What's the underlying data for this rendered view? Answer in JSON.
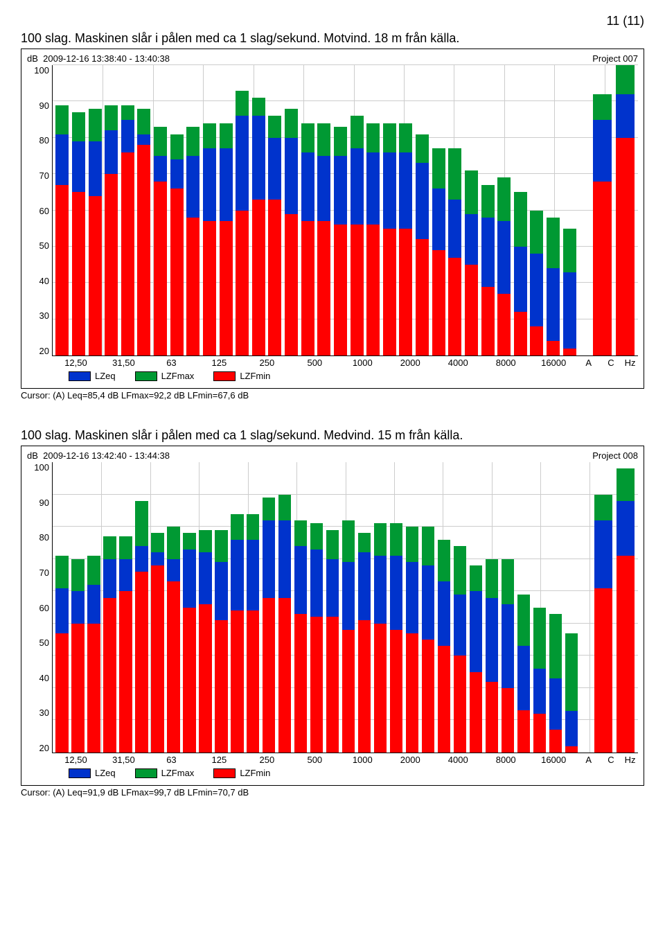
{
  "page_number": "11 (11)",
  "colors": {
    "green": "#009933",
    "blue": "#0033cc",
    "red": "#ff0000",
    "grid": "#cccccc",
    "border": "#000000"
  },
  "charts": [
    {
      "title": "100 slag. Maskinen slår i pålen med ca 1 slag/sekund. Motvind. 18 m från källa.",
      "project": "Project 007",
      "timestamp_label": "dB",
      "timestamp": "2009-12-16 13:38:40 - 13:40:38",
      "ymin": 20,
      "ymax": 100,
      "yticks": [
        20,
        30,
        40,
        50,
        60,
        70,
        80,
        90,
        100
      ],
      "x_labels_major": [
        "12,50",
        "31,50",
        "63",
        "125",
        "250",
        "500",
        "1000",
        "2000",
        "4000",
        "8000",
        "16000",
        "A",
        "C",
        "Hz"
      ],
      "legend": [
        {
          "label": "LZeq",
          "color": "#0033cc"
        },
        {
          "label": "LZFmax",
          "color": "#009933"
        },
        {
          "label": "LZFmin",
          "color": "#ff0000"
        }
      ],
      "cursor": "Cursor: (A)  Leq=85,4 dB  LFmax=92,2 dB  LFmin=67,6 dB",
      "bars": [
        {
          "max": 89,
          "eq": 81,
          "min": 67
        },
        {
          "max": 87,
          "eq": 79,
          "min": 65
        },
        {
          "max": 88,
          "eq": 79,
          "min": 64
        },
        {
          "max": 89,
          "eq": 82,
          "min": 70
        },
        {
          "max": 89,
          "eq": 85,
          "min": 76
        },
        {
          "max": 88,
          "eq": 81,
          "min": 78
        },
        {
          "max": 83,
          "eq": 75,
          "min": 68
        },
        {
          "max": 81,
          "eq": 74,
          "min": 66
        },
        {
          "max": 83,
          "eq": 75,
          "min": 58
        },
        {
          "max": 84,
          "eq": 77,
          "min": 57
        },
        {
          "max": 84,
          "eq": 77,
          "min": 57
        },
        {
          "max": 93,
          "eq": 86,
          "min": 60
        },
        {
          "max": 91,
          "eq": 86,
          "min": 63
        },
        {
          "max": 86,
          "eq": 80,
          "min": 63
        },
        {
          "max": 88,
          "eq": 80,
          "min": 59
        },
        {
          "max": 84,
          "eq": 76,
          "min": 57
        },
        {
          "max": 84,
          "eq": 75,
          "min": 57
        },
        {
          "max": 83,
          "eq": 75,
          "min": 56
        },
        {
          "max": 86,
          "eq": 77,
          "min": 56
        },
        {
          "max": 84,
          "eq": 76,
          "min": 56
        },
        {
          "max": 84,
          "eq": 76,
          "min": 55
        },
        {
          "max": 84,
          "eq": 76,
          "min": 55
        },
        {
          "max": 81,
          "eq": 73,
          "min": 52
        },
        {
          "max": 77,
          "eq": 66,
          "min": 49
        },
        {
          "max": 77,
          "eq": 63,
          "min": 47
        },
        {
          "max": 71,
          "eq": 59,
          "min": 45
        },
        {
          "max": 67,
          "eq": 58,
          "min": 39
        },
        {
          "max": 69,
          "eq": 57,
          "min": 37
        },
        {
          "max": 65,
          "eq": 50,
          "min": 32
        },
        {
          "max": 60,
          "eq": 48,
          "min": 28
        },
        {
          "max": 58,
          "eq": 44,
          "min": 24
        },
        {
          "max": 55,
          "eq": 43,
          "min": 22
        },
        null,
        {
          "max": 92,
          "eq": 85,
          "min": 68
        },
        {
          "max": 100,
          "eq": 92,
          "min": 80
        }
      ]
    },
    {
      "title": "100 slag. Maskinen slår i pålen med ca 1 slag/sekund. Medvind. 15 m från källa.",
      "project": "Project 008",
      "timestamp_label": "dB",
      "timestamp": "2009-12-16 13:42:40 - 13:44:38",
      "ymin": 20,
      "ymax": 110,
      "yticks": [
        20,
        30,
        40,
        50,
        60,
        70,
        80,
        90,
        100
      ],
      "x_labels_major": [
        "12,50",
        "31,50",
        "63",
        "125",
        "250",
        "500",
        "1000",
        "2000",
        "4000",
        "8000",
        "16000",
        "A",
        "C",
        "Hz"
      ],
      "legend": [
        {
          "label": "LZeq",
          "color": "#0033cc"
        },
        {
          "label": "LZFmax",
          "color": "#009933"
        },
        {
          "label": "LZFmin",
          "color": "#ff0000"
        }
      ],
      "cursor": "Cursor: (A)  Leq=91,9 dB  LFmax=99,7 dB  LFmin=70,7 dB",
      "bars": [
        {
          "max": 81,
          "eq": 71,
          "min": 57
        },
        {
          "max": 80,
          "eq": 70,
          "min": 60
        },
        {
          "max": 81,
          "eq": 72,
          "min": 60
        },
        {
          "max": 87,
          "eq": 80,
          "min": 68
        },
        {
          "max": 87,
          "eq": 80,
          "min": 70
        },
        {
          "max": 98,
          "eq": 84,
          "min": 76
        },
        {
          "max": 88,
          "eq": 82,
          "min": 78
        },
        {
          "max": 90,
          "eq": 80,
          "min": 73
        },
        {
          "max": 88,
          "eq": 83,
          "min": 65
        },
        {
          "max": 89,
          "eq": 82,
          "min": 66
        },
        {
          "max": 89,
          "eq": 79,
          "min": 61
        },
        {
          "max": 94,
          "eq": 86,
          "min": 64
        },
        {
          "max": 94,
          "eq": 86,
          "min": 64
        },
        {
          "max": 99,
          "eq": 92,
          "min": 68
        },
        {
          "max": 100,
          "eq": 92,
          "min": 68
        },
        {
          "max": 92,
          "eq": 84,
          "min": 63
        },
        {
          "max": 91,
          "eq": 83,
          "min": 62
        },
        {
          "max": 89,
          "eq": 80,
          "min": 62
        },
        {
          "max": 92,
          "eq": 79,
          "min": 58
        },
        {
          "max": 88,
          "eq": 82,
          "min": 61
        },
        {
          "max": 91,
          "eq": 81,
          "min": 60
        },
        {
          "max": 91,
          "eq": 81,
          "min": 58
        },
        {
          "max": 90,
          "eq": 79,
          "min": 57
        },
        {
          "max": 90,
          "eq": 78,
          "min": 55
        },
        {
          "max": 86,
          "eq": 73,
          "min": 53
        },
        {
          "max": 84,
          "eq": 69,
          "min": 50
        },
        {
          "max": 78,
          "eq": 70,
          "min": 45
        },
        {
          "max": 80,
          "eq": 68,
          "min": 42
        },
        {
          "max": 80,
          "eq": 66,
          "min": 40
        },
        {
          "max": 69,
          "eq": 53,
          "min": 33
        },
        {
          "max": 65,
          "eq": 46,
          "min": 32
        },
        {
          "max": 63,
          "eq": 43,
          "min": 27
        },
        {
          "max": 57,
          "eq": 33,
          "min": 22
        },
        null,
        {
          "max": 100,
          "eq": 92,
          "min": 71
        },
        {
          "max": 108,
          "eq": 98,
          "min": 81
        }
      ]
    }
  ]
}
